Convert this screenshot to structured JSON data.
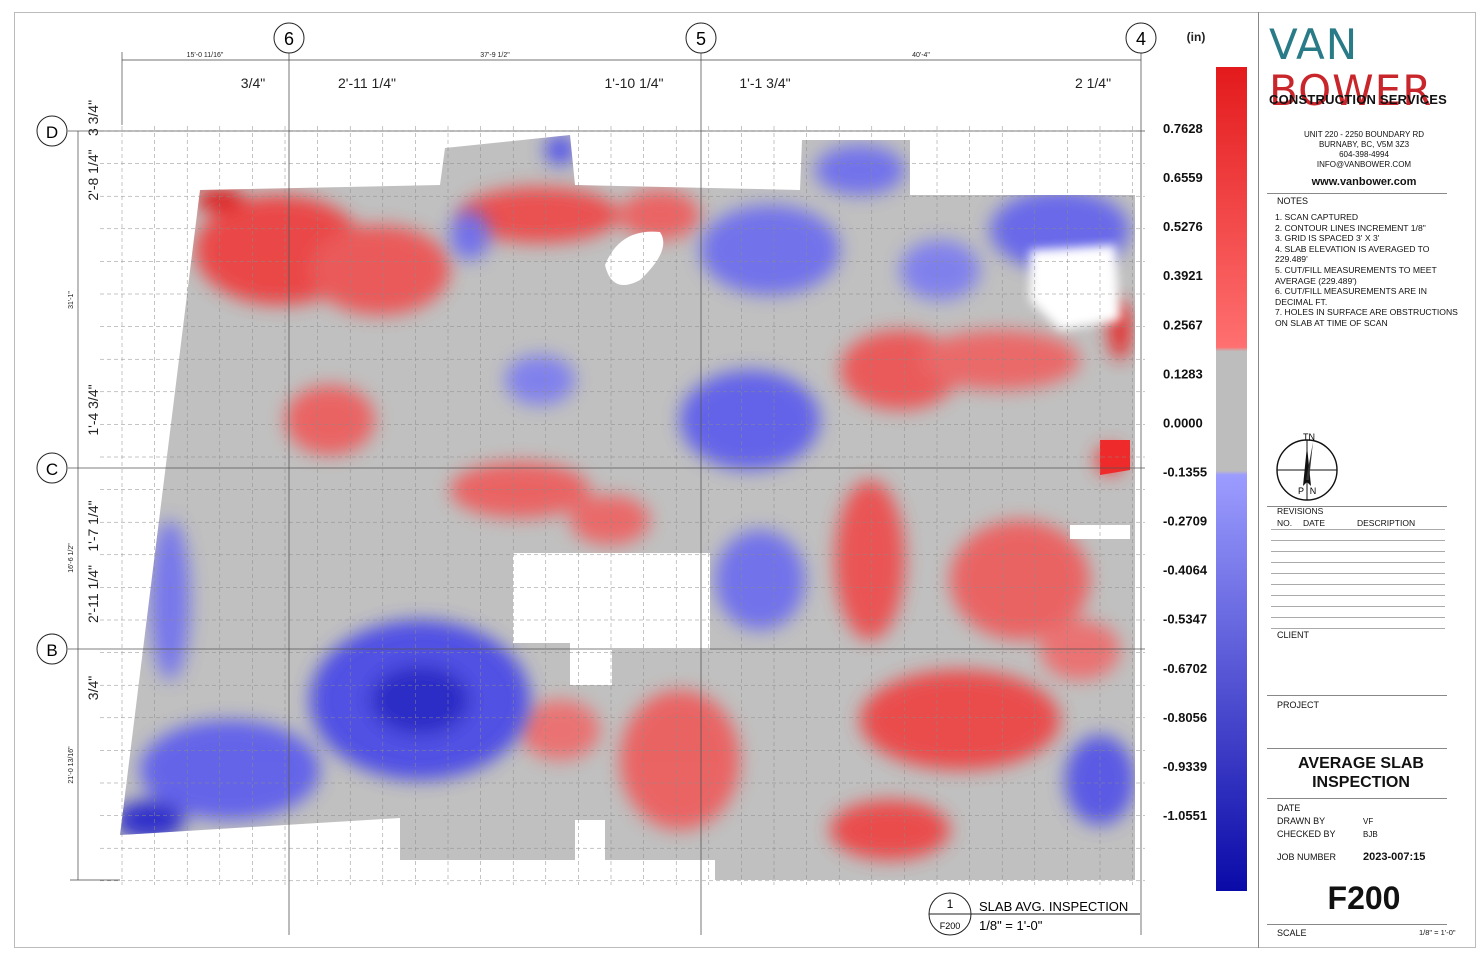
{
  "grid": {
    "columns": [
      "6",
      "5",
      "4"
    ],
    "rows": [
      "D",
      "C",
      "B"
    ],
    "units_label": "(in)",
    "top_dims": [
      "15'-0 11/16\"",
      "37'-9 1/2\"",
      "40'-4\""
    ],
    "top_offsets": [
      "3/4\"",
      "2'-11 1/4\"",
      "1'-10 1/4\"",
      "1'-1 3/4\"",
      "2 1/4\""
    ],
    "left_offsets": [
      "3 3/4\"",
      "2'-8 1/4\"",
      "1'-4 3/4\"",
      "1'-7 1/4\"",
      "2'-11 1/4\"",
      "3/4\""
    ],
    "left_dims": [
      "31'-1\"",
      "16'-6 1/2\"",
      "21'-0 13/16\""
    ]
  },
  "legend": {
    "values": [
      "0.7628",
      "0.6559",
      "0.5276",
      "0.3921",
      "0.2567",
      "0.1283",
      "0.0000",
      "-0.1355",
      "-0.2709",
      "-0.4064",
      "-0.5347",
      "-0.6702",
      "-0.8056",
      "-0.9339",
      "-1.0551"
    ],
    "top_color": "#e31a1c",
    "mid_color": "#bdbdbd",
    "bottom_color": "#0a0aa8"
  },
  "detail": {
    "number": "1",
    "sheet": "F200",
    "title": "SLAB AVG. INSPECTION",
    "scale": "1/8\" = 1'-0\""
  },
  "titleblock": {
    "logo_1": "VAN",
    "logo_2": "BOWER",
    "logo_sub": "CONSTRUCTION SERVICES",
    "address": [
      "UNIT 220 - 2250 BOUNDARY RD",
      "BURNABY, BC, V5M 3Z3",
      "604-398-4994",
      "INFO@VANBOWER.COM"
    ],
    "website": "www.vanbower.com",
    "notes_heading": "NOTES",
    "notes": [
      "1. SCAN CAPTURED",
      "2. CONTOUR LINES INCREMENT 1/8\"",
      "3. GRID IS SPACED 3' X 3'",
      "4. SLAB ELEVATION IS AVERAGED TO 229.489'",
      "5. CUT/FILL MEASUREMENTS TO MEET AVERAGE (229.489')",
      "6. CUT/FILL MEASUREMENTS ARE IN DECIMAL FT.",
      "7. HOLES IN SURFACE ARE OBSTRUCTIONS ON SLAB AT TIME OF SCAN"
    ],
    "compass_top": "TN",
    "compass_left": "P",
    "compass_right": "N",
    "revisions_heading": "REVISIONS",
    "rev_cols": [
      "NO.",
      "DATE",
      "DESCRIPTION"
    ],
    "client_label": "CLIENT",
    "project_label": "PROJECT",
    "drawing_title": "AVERAGE SLAB INSPECTION",
    "date_label": "DATE",
    "drawn_label": "DRAWN BY",
    "drawn_value": "VF",
    "checked_label": "CHECKED BY",
    "checked_value": "BJB",
    "job_label": "JOB NUMBER",
    "job_value": "2023-007:15",
    "sheet_number": "F200",
    "scale_label": "SCALE",
    "scale_value": "1/8\" = 1'-0\""
  },
  "colors": {
    "cut": "#ef3b3b",
    "fill": "#3b3bef",
    "level": "#c0c0c0"
  }
}
